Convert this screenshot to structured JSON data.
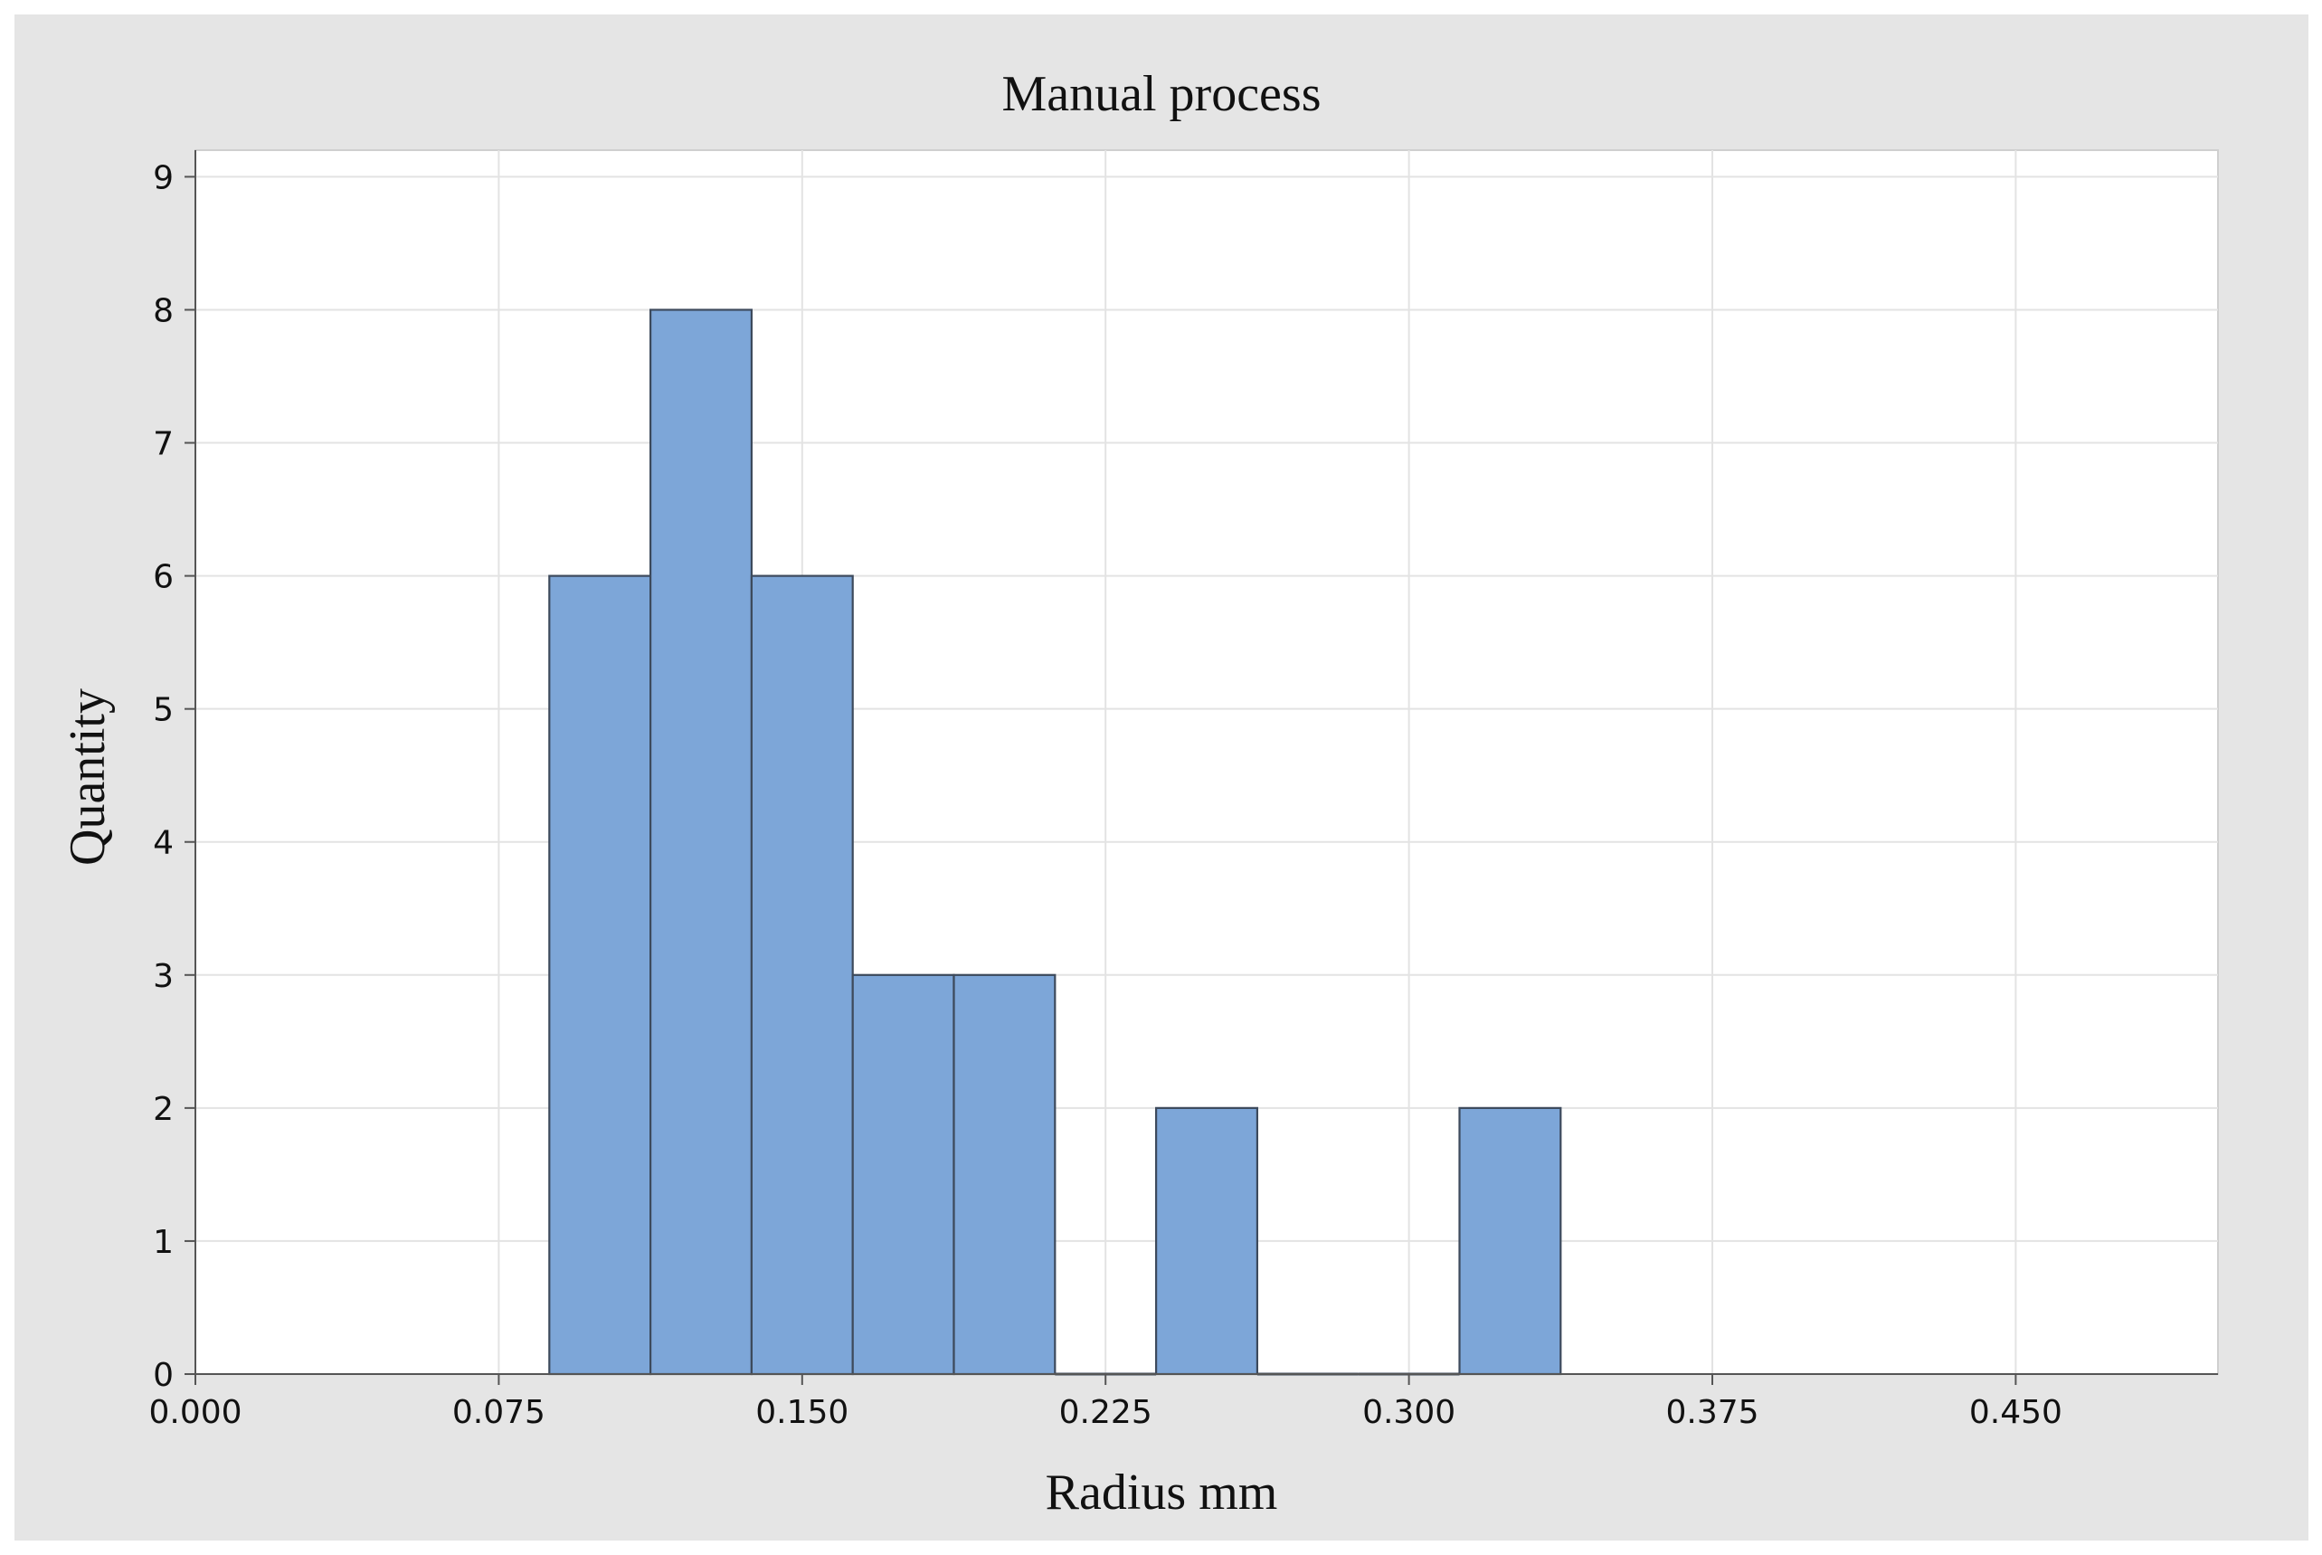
{
  "chart_data": {
    "type": "bar",
    "subtype": "histogram",
    "title": "Manual process",
    "xlabel": "Radius mm",
    "ylabel": "Quantity",
    "xlim": [
      0.0,
      0.5
    ],
    "ylim": [
      0,
      9.2
    ],
    "x_ticks": [
      "0.000",
      "0.075",
      "0.150",
      "0.225",
      "0.300",
      "0.375",
      "0.450"
    ],
    "y_ticks": [
      "0",
      "1",
      "2",
      "3",
      "4",
      "5",
      "6",
      "7",
      "8",
      "9"
    ],
    "bin_width": 0.025,
    "bin_centers": [
      0.1,
      0.125,
      0.15,
      0.175,
      0.2,
      0.225,
      0.25,
      0.275,
      0.3,
      0.325
    ],
    "values": [
      6,
      8,
      6,
      3,
      3,
      0,
      2,
      0,
      0,
      2
    ],
    "grid": true,
    "colors": {
      "bar_fill": "#7da6d8",
      "bar_edge": "#3d4a5c",
      "figure_background": "#e5e5e5",
      "plot_background": "#ffffff",
      "grid": "#e3e3e3"
    }
  }
}
